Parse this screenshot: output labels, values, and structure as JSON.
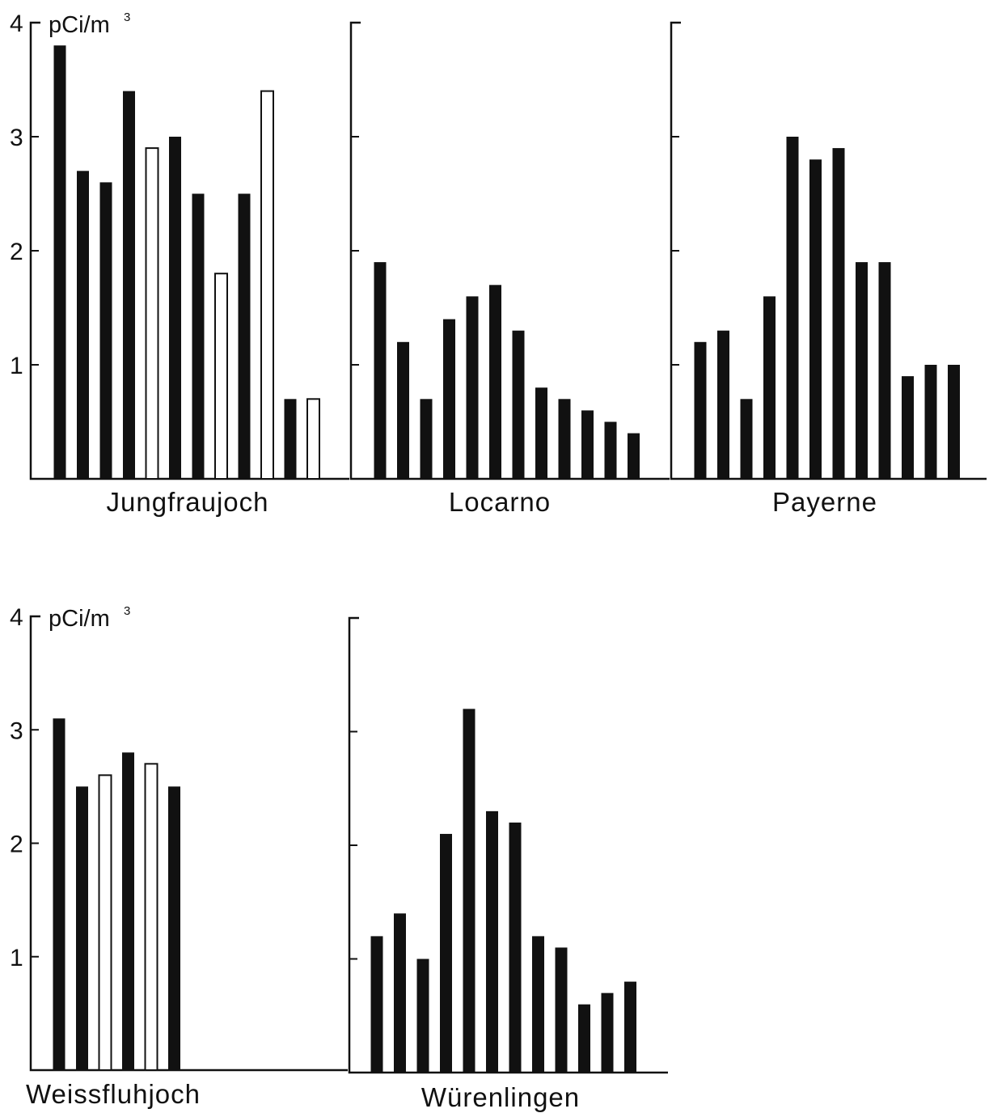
{
  "unit": {
    "base": "pCi/m",
    "exponent": "3"
  },
  "y_ticks": [
    "1",
    "2",
    "3",
    "4"
  ],
  "chart_data": [
    {
      "type": "bar",
      "title": "Jungfraujoch",
      "ylabel": "pCi/m³",
      "ylim": [
        0,
        4
      ],
      "grid": false,
      "values": [
        3.8,
        2.7,
        2.6,
        3.4,
        2.9,
        3.0,
        2.5,
        1.8,
        2.5,
        3.4,
        0.7,
        0.7
      ],
      "filled": [
        true,
        true,
        true,
        true,
        false,
        true,
        true,
        false,
        true,
        false,
        true,
        false
      ]
    },
    {
      "type": "bar",
      "title": "Locarno",
      "ylim": [
        0,
        4
      ],
      "grid": false,
      "values": [
        1.9,
        1.2,
        0.7,
        1.4,
        1.6,
        1.7,
        1.3,
        0.8,
        0.7,
        0.6,
        0.5,
        0.4
      ],
      "filled": [
        true,
        true,
        true,
        true,
        true,
        true,
        true,
        true,
        true,
        true,
        true,
        true
      ]
    },
    {
      "type": "bar",
      "title": "Payerne",
      "ylim": [
        0,
        4
      ],
      "grid": false,
      "values": [
        1.2,
        1.3,
        0.7,
        1.6,
        3.0,
        2.8,
        2.9,
        1.9,
        1.9,
        0.9,
        1.0,
        1.0
      ],
      "filled": [
        true,
        true,
        true,
        true,
        true,
        true,
        true,
        true,
        true,
        true,
        true,
        true
      ]
    },
    {
      "type": "bar",
      "title": "Weissfluhjoch",
      "ylabel": "pCi/m³",
      "ylim": [
        0,
        4
      ],
      "grid": false,
      "values": [
        3.1,
        2.5,
        2.6,
        2.8,
        2.7,
        2.5
      ],
      "filled": [
        true,
        true,
        false,
        true,
        false,
        true
      ]
    },
    {
      "type": "bar",
      "title": "Würenlingen",
      "ylim": [
        0,
        4
      ],
      "grid": false,
      "values": [
        1.2,
        1.4,
        1.0,
        2.1,
        3.2,
        2.3,
        2.2,
        1.2,
        1.1,
        0.6,
        0.7,
        0.8
      ],
      "filled": [
        true,
        true,
        true,
        true,
        true,
        true,
        true,
        true,
        true,
        true,
        true,
        true
      ]
    }
  ]
}
